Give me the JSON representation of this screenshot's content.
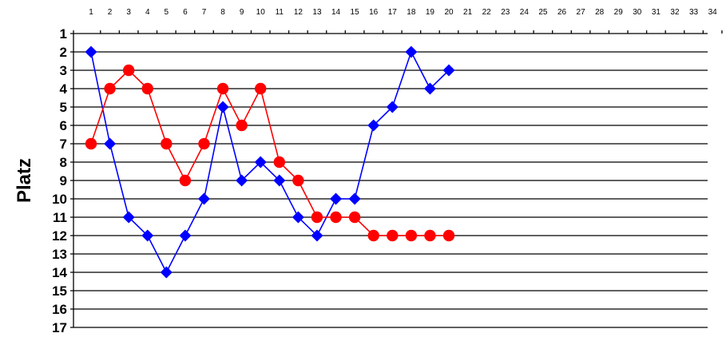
{
  "chart_data": {
    "type": "line",
    "title": "",
    "xlabel": "",
    "ylabel": "Platz",
    "x_categories": [
      1,
      2,
      3,
      4,
      5,
      6,
      7,
      8,
      9,
      10,
      11,
      12,
      13,
      14,
      15,
      16,
      17,
      18,
      19,
      20,
      21,
      22,
      23,
      24,
      25,
      26,
      27,
      28,
      29,
      30,
      31,
      32,
      33,
      34
    ],
    "y_ticks": [
      1,
      2,
      3,
      4,
      5,
      6,
      7,
      8,
      9,
      10,
      11,
      12,
      13,
      14,
      15,
      16,
      17
    ],
    "ylim": [
      1,
      17
    ],
    "y_inverted": true,
    "x_axis_position": "top",
    "grid": "horizontal",
    "legend": "none",
    "series": [
      {
        "marker": "diamond",
        "color": "#0000ff",
        "x": [
          1,
          2,
          3,
          4,
          5,
          6,
          7,
          8,
          9,
          10,
          11,
          12,
          13,
          14,
          15,
          16,
          17,
          18,
          19,
          20
        ],
        "values": [
          2,
          7,
          11,
          12,
          14,
          12,
          10,
          5,
          9,
          8,
          9,
          11,
          12,
          10,
          10,
          6,
          5,
          2,
          4,
          3
        ]
      },
      {
        "marker": "circle",
        "color": "#ff0000",
        "x": [
          1,
          2,
          3,
          4,
          5,
          6,
          7,
          8,
          9,
          10,
          11,
          12,
          13,
          14,
          15,
          16,
          17,
          18,
          19,
          20
        ],
        "values": [
          7,
          4,
          3,
          4,
          7,
          9,
          7,
          4,
          6,
          4,
          8,
          9,
          11,
          11,
          11,
          12,
          12,
          12,
          12,
          12
        ]
      }
    ]
  }
}
